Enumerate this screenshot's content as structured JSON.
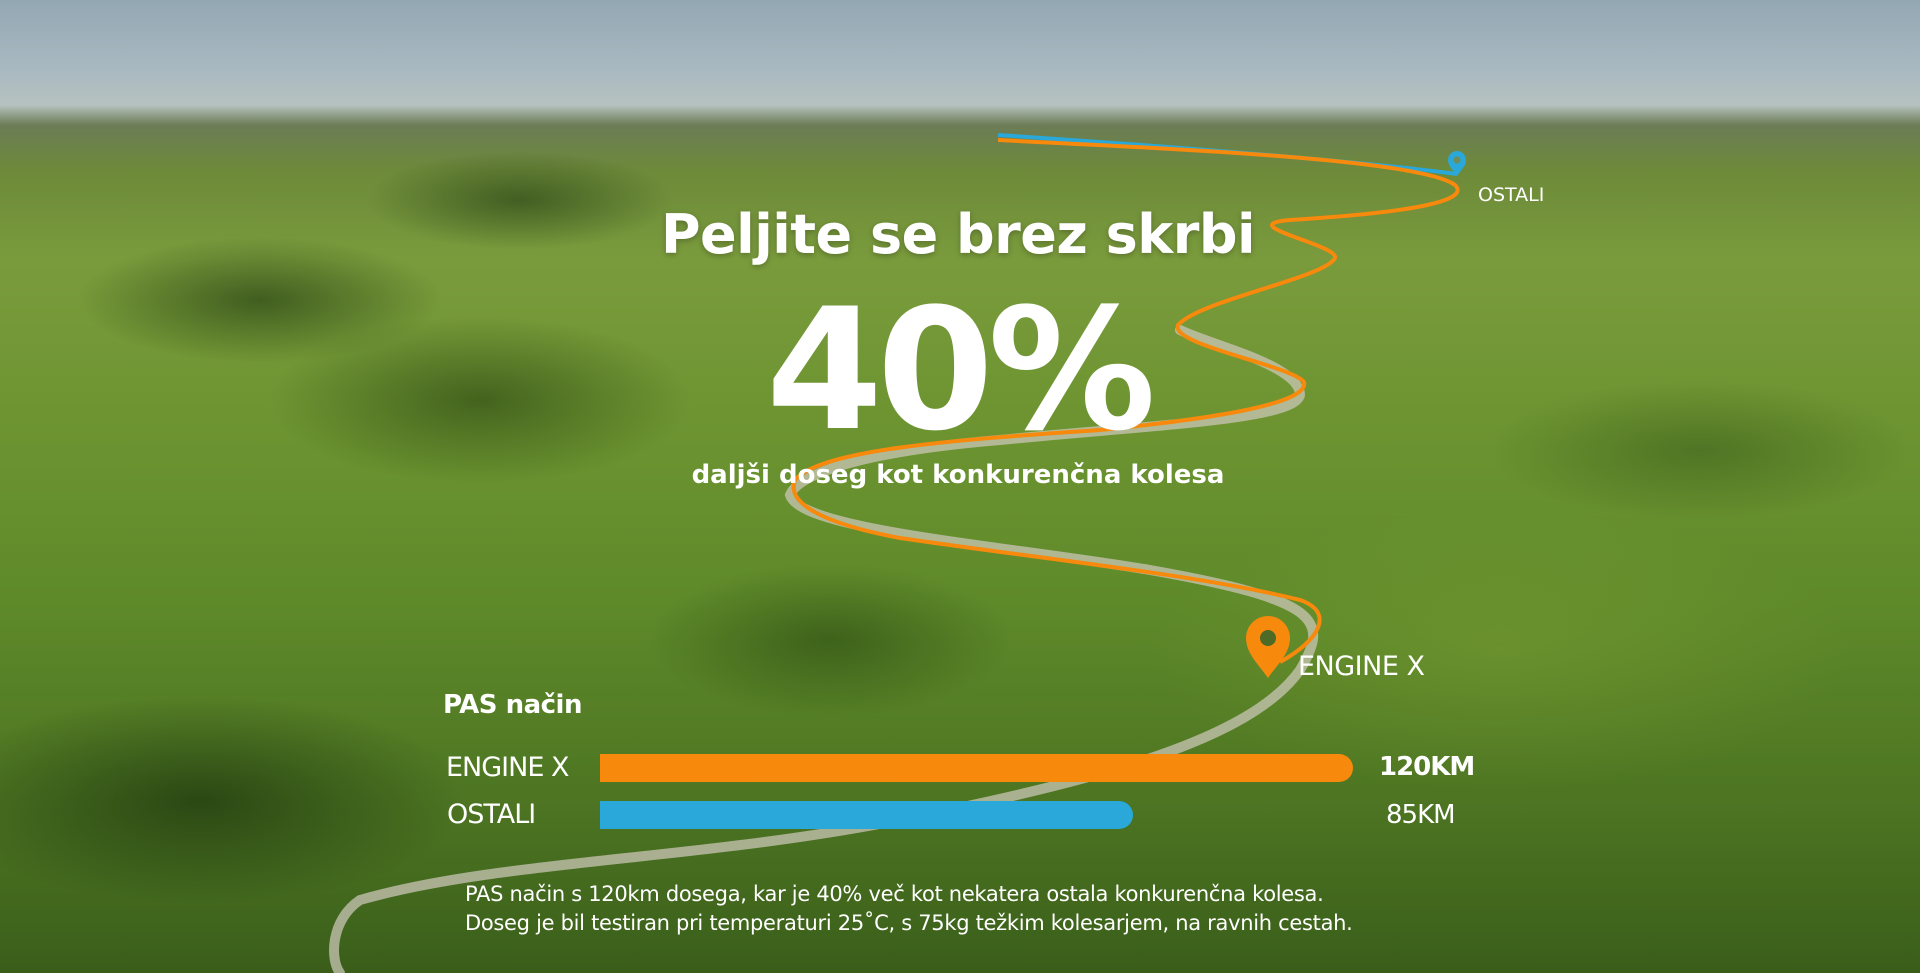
{
  "headline": "Peljite se brez skrbi",
  "big_stat": "40%",
  "subheadline": "daljši doseg kot konkurenčna kolesa",
  "map": {
    "pins": [
      {
        "label": "OSTALI",
        "color": "#29a8d9",
        "icon": "location-pin-icon"
      },
      {
        "label": "ENGINE X",
        "color": "#f7890d",
        "icon": "location-pin-icon"
      }
    ]
  },
  "chart_data": {
    "type": "bar",
    "title": "PAS način",
    "categories": [
      "ENGINE X",
      "OSTALI"
    ],
    "values": [
      120,
      85
    ],
    "value_labels": [
      "120KM",
      "85KM"
    ],
    "colors": [
      "#f7890d",
      "#29a8d9"
    ],
    "orientation": "horizontal"
  },
  "footnote": {
    "line1": "PAS način s 120km dosega, kar je 40% več kot nekatera ostala konkurenčna kolesa.",
    "line2": "Doseg je bil testiran pri temperaturi 25˚C, s 75kg težkim kolesarjem, na ravnih cestah."
  }
}
